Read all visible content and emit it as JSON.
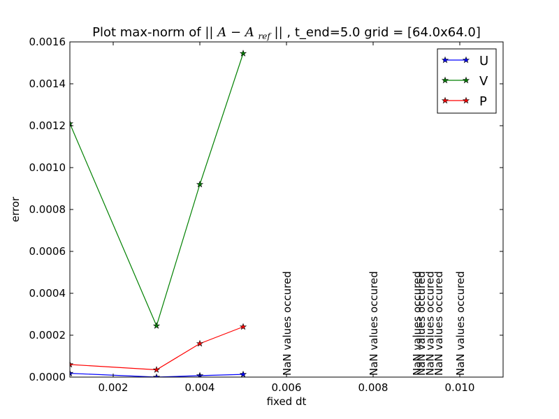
{
  "chart_data": {
    "type": "line",
    "title": {
      "prefix": "Plot max-norm of ",
      "math_open": "||",
      "math_a": "A",
      "math_minus": "−",
      "math_aref": "A",
      "math_sub": "ref",
      "math_close": "||",
      "suffix": ", t_end=5.0  grid = [64.0x64.0]"
    },
    "xlabel": "fixed dt",
    "ylabel": "error",
    "xlim": [
      0.001,
      0.011
    ],
    "ylim": [
      0.0,
      0.0016
    ],
    "xticks": [
      0.002,
      0.004,
      0.006,
      0.008,
      0.01
    ],
    "xtick_labels": [
      "0.002",
      "0.004",
      "0.006",
      "0.008",
      "0.010"
    ],
    "yticks": [
      0.0,
      0.0002,
      0.0004,
      0.0006,
      0.0008,
      0.001,
      0.0012,
      0.0014,
      0.0016
    ],
    "ytick_labels": [
      "0.0000",
      "0.0002",
      "0.0004",
      "0.0006",
      "0.0008",
      "0.0010",
      "0.0012",
      "0.0014",
      "0.0016"
    ],
    "grid": false,
    "legend_position": "top-right",
    "marker": "star",
    "series": [
      {
        "name": "U",
        "color": "#0000ff",
        "x": [
          0.001,
          0.003,
          0.004,
          0.005
        ],
        "y": [
          1.8e-05,
          0.0,
          7e-06,
          1.3e-05
        ]
      },
      {
        "name": "V",
        "color": "#008000",
        "x": [
          0.001,
          0.003,
          0.004,
          0.005
        ],
        "y": [
          0.00121,
          0.000245,
          0.00092,
          0.001545
        ]
      },
      {
        "name": "P",
        "color": "#ff0000",
        "x": [
          0.001,
          0.003,
          0.004,
          0.005
        ],
        "y": [
          6e-05,
          3.5e-05,
          0.00016,
          0.00024
        ]
      }
    ],
    "annotations": [
      {
        "text": "NaN values occured",
        "x": 0.006,
        "y": 0.0
      },
      {
        "text": "NaN values occured",
        "x": 0.008,
        "y": 0.0
      },
      {
        "text": "NaN values occured",
        "x": 0.009,
        "y": 0.0
      },
      {
        "text": "NaN values occured",
        "x": 0.0091,
        "y": 0.0
      },
      {
        "text": "NaN values occured",
        "x": 0.0093,
        "y": 0.0
      },
      {
        "text": "NaN values occured",
        "x": 0.0095,
        "y": 0.0
      },
      {
        "text": "NaN values occured",
        "x": 0.01,
        "y": 0.0
      }
    ]
  }
}
